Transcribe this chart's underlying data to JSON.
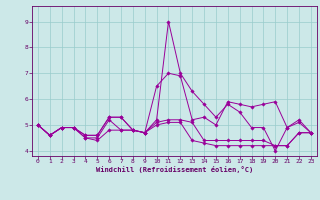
{
  "xlabel": "Windchill (Refroidissement éolien,°C)",
  "background_color": "#cce8e8",
  "line_color": "#990099",
  "grid_color": "#99cccc",
  "xlim": [
    -0.5,
    23.5
  ],
  "ylim": [
    3.8,
    9.6
  ],
  "yticks": [
    4,
    5,
    6,
    7,
    8,
    9
  ],
  "xticks": [
    0,
    1,
    2,
    3,
    4,
    5,
    6,
    7,
    8,
    9,
    10,
    11,
    12,
    13,
    14,
    15,
    16,
    17,
    18,
    19,
    20,
    21,
    22,
    23
  ],
  "series": [
    [
      5.0,
      4.6,
      4.9,
      4.9,
      4.6,
      4.6,
      5.3,
      5.3,
      4.8,
      4.7,
      5.2,
      9.0,
      7.0,
      6.3,
      5.8,
      5.3,
      5.8,
      5.5,
      4.9,
      4.9,
      4.0,
      4.9,
      5.2,
      4.7
    ],
    [
      5.0,
      4.6,
      4.9,
      4.9,
      4.6,
      4.6,
      5.3,
      5.3,
      4.8,
      4.7,
      6.5,
      7.0,
      6.9,
      5.2,
      5.3,
      5.0,
      5.9,
      5.8,
      5.7,
      5.8,
      5.9,
      4.9,
      5.1,
      4.7
    ],
    [
      5.0,
      4.6,
      4.9,
      4.9,
      4.5,
      4.5,
      5.2,
      4.8,
      4.8,
      4.7,
      5.1,
      5.2,
      5.2,
      5.1,
      4.4,
      4.4,
      4.4,
      4.4,
      4.4,
      4.4,
      4.2,
      4.2,
      4.7,
      4.7
    ],
    [
      5.0,
      4.6,
      4.9,
      4.9,
      4.5,
      4.4,
      4.8,
      4.8,
      4.8,
      4.7,
      5.0,
      5.1,
      5.1,
      4.4,
      4.3,
      4.2,
      4.2,
      4.2,
      4.2,
      4.2,
      4.2,
      4.2,
      4.7,
      4.7
    ]
  ]
}
